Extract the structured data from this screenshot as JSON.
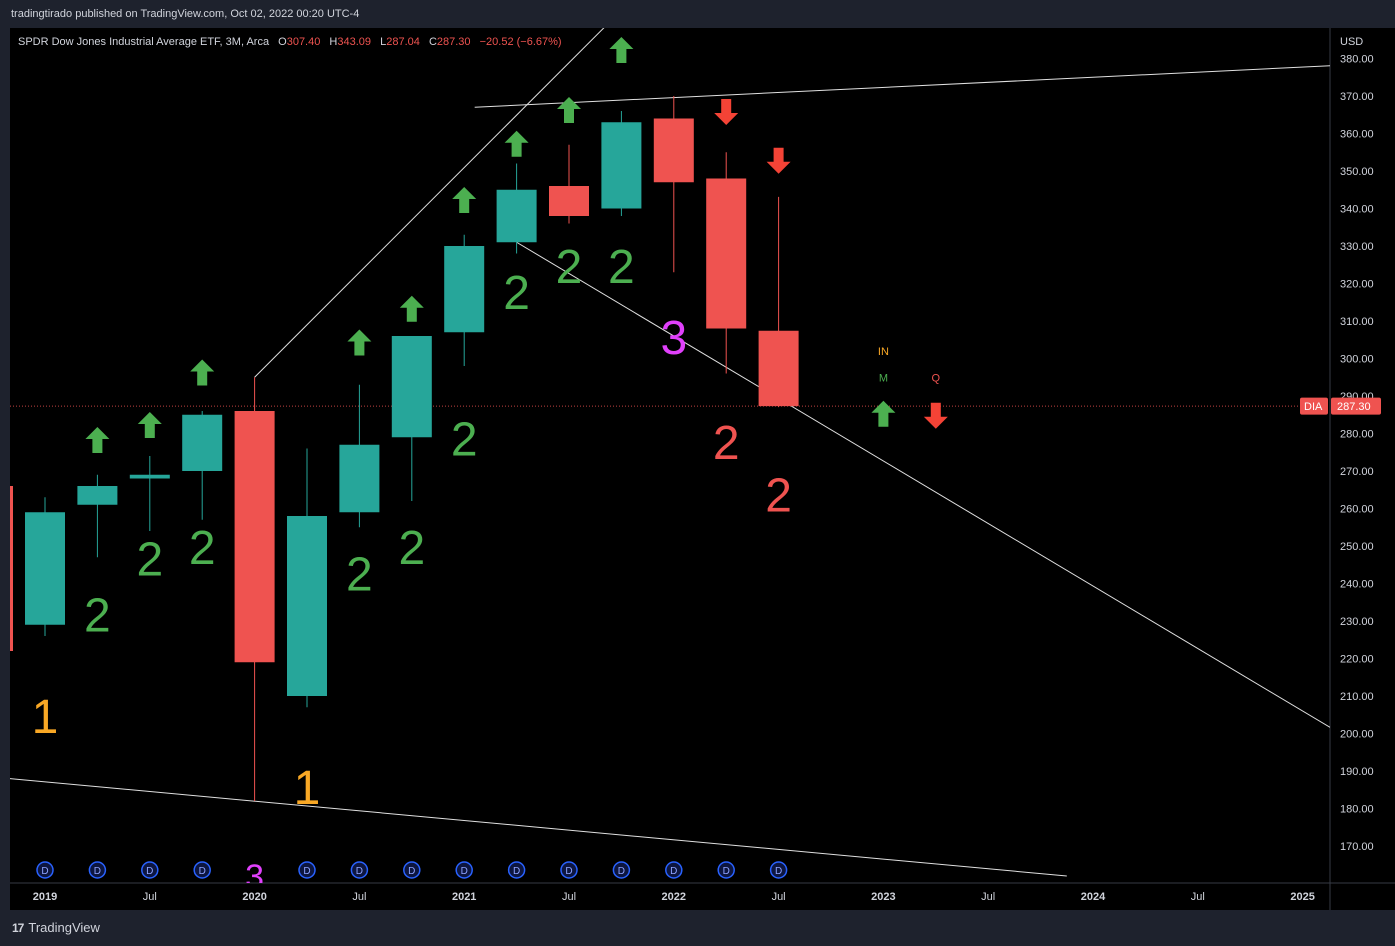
{
  "header": {
    "publisher_line": "tradingtirado published on TradingView.com, Oct 02, 2022 00:20 UTC-4"
  },
  "legend": {
    "symbol_line": "SPDR Dow Jones Industrial Average ETF, 3M, Arca",
    "o_label": "O",
    "o_value": "307.40",
    "h_label": "H",
    "h_value": "343.09",
    "l_label": "L",
    "l_value": "287.04",
    "c_label": "C",
    "c_value": "287.30",
    "change": "−20.52 (−6.67%)"
  },
  "price_axis": {
    "currency": "USD",
    "current_symbol": "DIA",
    "current_price": "287.30"
  },
  "footer": {
    "brand": "TradingView",
    "logo": "17"
  },
  "colors": {
    "up": "#26a69a",
    "down": "#ef5350",
    "label_green": "#4caf50",
    "label_orange": "#f9a825",
    "label_magenta": "#e040fb",
    "arrow_green": "#4caf50",
    "arrow_red": "#f44336",
    "dividend": "#2962ff",
    "background": "#000000",
    "panel": "#1e222d",
    "line": "#e0e0e0"
  },
  "chart_data": {
    "type": "candlestick",
    "ylim": [
      162,
      391
    ],
    "y_ticks": [
      170,
      180,
      190,
      200,
      210,
      220,
      230,
      240,
      250,
      260,
      270,
      280,
      290,
      300,
      310,
      320,
      330,
      340,
      350,
      360,
      370,
      380
    ],
    "x_ticks": [
      {
        "label": "2019",
        "q": 0
      },
      {
        "label": "Jul",
        "q": 2
      },
      {
        "label": "2020",
        "q": 4
      },
      {
        "label": "Jul",
        "q": 6
      },
      {
        "label": "2021",
        "q": 8
      },
      {
        "label": "Jul",
        "q": 10
      },
      {
        "label": "2022",
        "q": 12
      },
      {
        "label": "Jul",
        "q": 14
      },
      {
        "label": "2023",
        "q": 16
      },
      {
        "label": "Jul",
        "q": 18
      },
      {
        "label": "2024",
        "q": 20
      },
      {
        "label": "Jul",
        "q": 22
      },
      {
        "label": "2025",
        "q": 24
      }
    ],
    "candles": [
      {
        "period": "2019-Q1",
        "open": 229,
        "high": 263,
        "low": 226,
        "close": 259
      },
      {
        "period": "2019-Q2",
        "open": 261,
        "high": 269,
        "low": 247,
        "close": 266
      },
      {
        "period": "2019-Q3",
        "open": 268,
        "high": 274,
        "low": 254,
        "close": 269
      },
      {
        "period": "2019-Q4",
        "open": 270,
        "high": 286,
        "low": 257,
        "close": 285
      },
      {
        "period": "2020-Q1",
        "open": 286,
        "high": 295,
        "low": 182,
        "close": 219
      },
      {
        "period": "2020-Q2",
        "open": 210,
        "high": 276,
        "low": 207,
        "close": 258
      },
      {
        "period": "2020-Q3",
        "open": 259,
        "high": 293,
        "low": 255,
        "close": 277
      },
      {
        "period": "2020-Q4",
        "open": 279,
        "high": 306,
        "low": 262,
        "close": 306
      },
      {
        "period": "2021-Q1",
        "open": 307,
        "high": 333,
        "low": 298,
        "close": 330
      },
      {
        "period": "2021-Q2",
        "open": 331,
        "high": 352,
        "low": 328,
        "close": 345
      },
      {
        "period": "2021-Q3",
        "open": 346,
        "high": 357,
        "low": 336,
        "close": 338
      },
      {
        "period": "2021-Q4",
        "open": 340,
        "high": 366,
        "low": 338,
        "close": 363
      },
      {
        "period": "2022-Q1",
        "open": 364,
        "high": 370,
        "low": 323,
        "close": 347
      },
      {
        "period": "2022-Q2",
        "open": 348,
        "high": 355,
        "low": 296,
        "close": 308
      },
      {
        "period": "2022-Q3",
        "open": 307.4,
        "high": 343.09,
        "low": 287.04,
        "close": 287.3
      }
    ],
    "edge_candle": {
      "period": "2018-Q4",
      "open": 266,
      "low": 222
    },
    "count_labels": [
      {
        "q": 0,
        "text": "1",
        "color": "orange",
        "price": 205
      },
      {
        "q": 1,
        "text": "2",
        "color": "green",
        "price": 232
      },
      {
        "q": 2,
        "text": "2",
        "color": "green",
        "price": 247
      },
      {
        "q": 3,
        "text": "2",
        "color": "green",
        "price": 250
      },
      {
        "q": 5,
        "text": "1",
        "color": "orange",
        "price": 186
      },
      {
        "q": 6,
        "text": "2",
        "color": "green",
        "price": 243
      },
      {
        "q": 7,
        "text": "2",
        "color": "green",
        "price": 250
      },
      {
        "q": 8,
        "text": "2",
        "color": "green",
        "price": 279
      },
      {
        "q": 9,
        "text": "2",
        "color": "green",
        "price": 318
      },
      {
        "q": 10,
        "text": "2",
        "color": "green",
        "price": 325
      },
      {
        "q": 11,
        "text": "2",
        "color": "green",
        "price": 325
      },
      {
        "q": 12,
        "text": "3",
        "color": "magenta",
        "price": 306
      },
      {
        "q": 13,
        "text": "2",
        "color": "red",
        "price": 278
      },
      {
        "q": 14,
        "text": "2",
        "color": "red",
        "price": 264
      }
    ],
    "arrows": [
      {
        "q": 1,
        "dir": "up",
        "price": 278
      },
      {
        "q": 2,
        "dir": "up",
        "price": 282
      },
      {
        "q": 3,
        "dir": "up",
        "price": 296
      },
      {
        "q": 6,
        "dir": "up",
        "price": 304
      },
      {
        "q": 7,
        "dir": "up",
        "price": 313
      },
      {
        "q": 8,
        "dir": "up",
        "price": 342
      },
      {
        "q": 9,
        "dir": "up",
        "price": 357
      },
      {
        "q": 10,
        "dir": "up",
        "price": 366
      },
      {
        "q": 11,
        "dir": "up",
        "price": 382
      },
      {
        "q": 13,
        "dir": "down",
        "price": 366
      },
      {
        "q": 14,
        "dir": "down",
        "price": 353
      },
      {
        "q": 16,
        "dir": "up",
        "price": 285
      },
      {
        "q": 17,
        "dir": "down",
        "price": 285
      }
    ],
    "signal_labels": [
      {
        "q": 16,
        "text": "IN",
        "color": "orange",
        "price": 302
      },
      {
        "q": 16,
        "text": "M",
        "color": "green",
        "price": 295
      },
      {
        "q": 17,
        "text": "Q",
        "color": "red",
        "price": 295
      }
    ],
    "dividend_marker": "D",
    "dividends_q": [
      0,
      1,
      2,
      3,
      5,
      6,
      7,
      8,
      9,
      10,
      11,
      12,
      13,
      14
    ],
    "quarter_marker": {
      "q": 4,
      "text": "3"
    },
    "trendlines": [
      {
        "q1": 4,
        "p1": 295,
        "q2": 13.8,
        "p2": 432
      },
      {
        "q1": 9,
        "p1": 331,
        "q2": 24.6,
        "p2": 201
      },
      {
        "q1": 8.2,
        "p1": 367,
        "q2": 25.9,
        "p2": 379
      },
      {
        "q1": -0.7,
        "p1": 188,
        "q2": 19.5,
        "p2": 162
      }
    ],
    "current_price_line": 287.3
  }
}
